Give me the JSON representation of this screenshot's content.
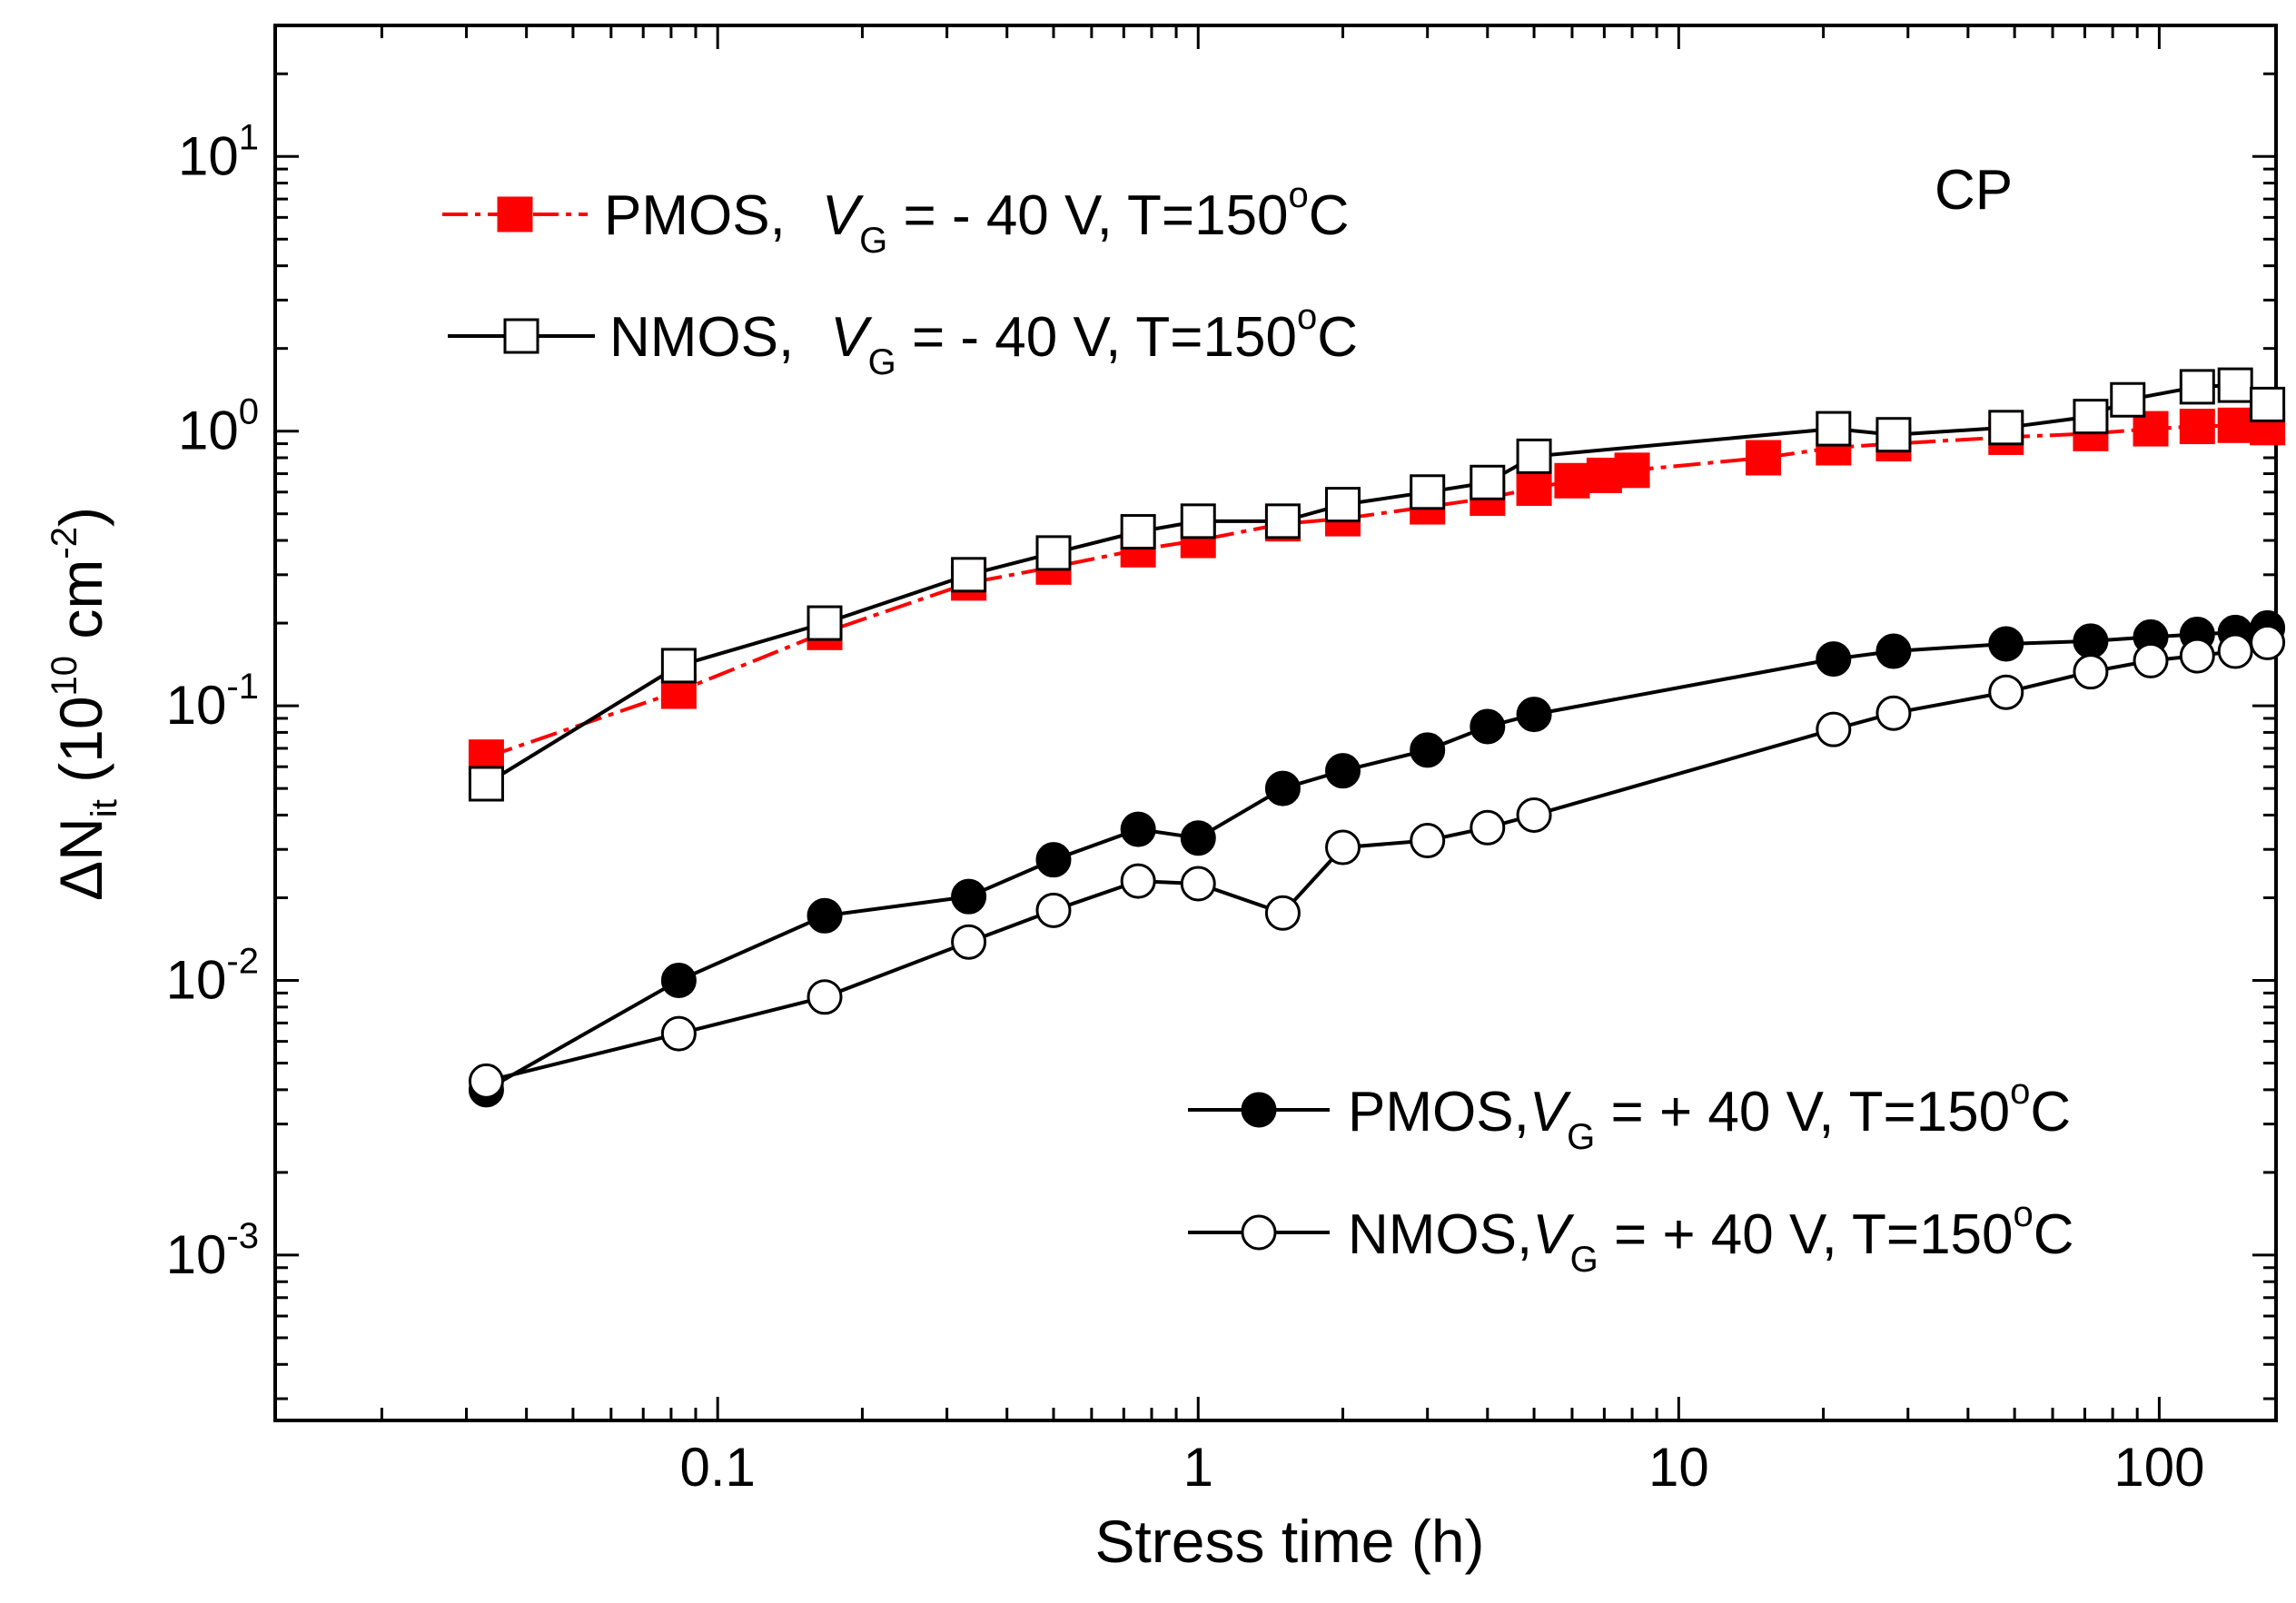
{
  "chart_data": {
    "type": "line",
    "xscale": "log",
    "yscale": "log",
    "xlim": [
      0.012,
      175
    ],
    "ylim": [
      0.00025,
      30
    ],
    "xlabel": "Stress time (h)",
    "ylabel": {
      "prefix": "ΔN",
      "sub": "it",
      "unit_open": " (10",
      "unit_exp": "10",
      "unit_mid": " cm",
      "unit_exp2": "-2",
      "unit_close": ")"
    },
    "x_ticks": [
      {
        "value": 0.1,
        "label": "0.1"
      },
      {
        "value": 1,
        "label": "1"
      },
      {
        "value": 10,
        "label": "10"
      },
      {
        "value": 100,
        "label": "100"
      }
    ],
    "y_ticks": [
      {
        "value": 0.001,
        "base": "10",
        "exp": "-3"
      },
      {
        "value": 0.01,
        "base": "10",
        "exp": "-2"
      },
      {
        "value": 0.1,
        "base": "10",
        "exp": "-1"
      },
      {
        "value": 1,
        "base": "10",
        "exp": "0"
      },
      {
        "value": 10,
        "base": "10",
        "exp": "1"
      }
    ],
    "annotation": "CP",
    "series": [
      {
        "name": "PMOS, VG = - 40 V, T=150°C",
        "device": "PMOS,",
        "vg_value": " = - 40 V, T=150",
        "temp_unit": "C",
        "marker": "square",
        "filled": true,
        "color": "#ff0000",
        "line_color": "#ff0000",
        "x": [
          0.033,
          0.083,
          0.167,
          0.333,
          0.5,
          0.75,
          1.0,
          1.5,
          2.0,
          3.0,
          4.0,
          5.0,
          6.0,
          7.0,
          8.0,
          15.0,
          21.0,
          28.0,
          48.0,
          72.0,
          96.0,
          120.0,
          144.0,
          168.0
        ],
        "y": [
          0.065,
          0.113,
          0.185,
          0.28,
          0.32,
          0.37,
          0.4,
          0.46,
          0.48,
          0.53,
          0.57,
          0.62,
          0.66,
          0.69,
          0.72,
          0.8,
          0.87,
          0.9,
          0.95,
          0.98,
          1.02,
          1.04,
          1.05,
          1.03
        ]
      },
      {
        "name": "NMOS, VG = - 40 V, T=150°C",
        "device": "NMOS,",
        "vg_value": " = - 40 V, T=150",
        "temp_unit": "C",
        "marker": "square",
        "filled": false,
        "color": "#000000",
        "line_color": "#000000",
        "x": [
          0.033,
          0.083,
          0.167,
          0.333,
          0.5,
          0.75,
          1.0,
          1.5,
          2.0,
          3.0,
          4.0,
          5.0,
          21.0,
          28.0,
          48.0,
          72.0,
          86.0,
          120.0,
          144.0,
          168.0
        ],
        "y": [
          0.052,
          0.14,
          0.2,
          0.3,
          0.36,
          0.43,
          0.47,
          0.47,
          0.54,
          0.6,
          0.65,
          0.81,
          1.02,
          0.97,
          1.03,
          1.13,
          1.3,
          1.45,
          1.47,
          1.25
        ]
      },
      {
        "name": "PMOS,VG = + 40 V, T=150°C",
        "device": "PMOS,",
        "vg_value": " = + 40 V, T=150",
        "temp_unit": "C",
        "marker": "circle",
        "filled": true,
        "color": "#000000",
        "line_color": "#000000",
        "x": [
          0.033,
          0.083,
          0.167,
          0.333,
          0.5,
          0.75,
          1.0,
          1.5,
          2.0,
          3.0,
          4.0,
          5.0,
          21.0,
          28.0,
          48.0,
          72.0,
          96.0,
          120.0,
          144.0,
          168.0
        ],
        "y": [
          0.004,
          0.01,
          0.0172,
          0.0202,
          0.0275,
          0.0355,
          0.033,
          0.05,
          0.058,
          0.069,
          0.084,
          0.093,
          0.148,
          0.158,
          0.168,
          0.172,
          0.178,
          0.182,
          0.185,
          0.192
        ]
      },
      {
        "name": "NMOS,VG = + 40 V, T=150°C",
        "device": "NMOS,",
        "vg_value": " = + 40 V, T=150",
        "temp_unit": "C",
        "marker": "circle",
        "filled": false,
        "color": "#000000",
        "line_color": "#000000",
        "x": [
          0.033,
          0.083,
          0.167,
          0.333,
          0.5,
          0.75,
          1.0,
          1.5,
          2.0,
          3.0,
          4.0,
          5.0,
          21.0,
          28.0,
          48.0,
          72.0,
          96.0,
          120.0,
          144.0,
          168.0
        ],
        "y": [
          0.0043,
          0.0064,
          0.0087,
          0.0138,
          0.018,
          0.023,
          0.0225,
          0.0176,
          0.0305,
          0.0323,
          0.036,
          0.04,
          0.082,
          0.094,
          0.112,
          0.133,
          0.146,
          0.152,
          0.158,
          0.17
        ]
      }
    ],
    "legend_vg_symbol": "V",
    "legend_vg_sub": "G",
    "legend_degree": "o"
  }
}
